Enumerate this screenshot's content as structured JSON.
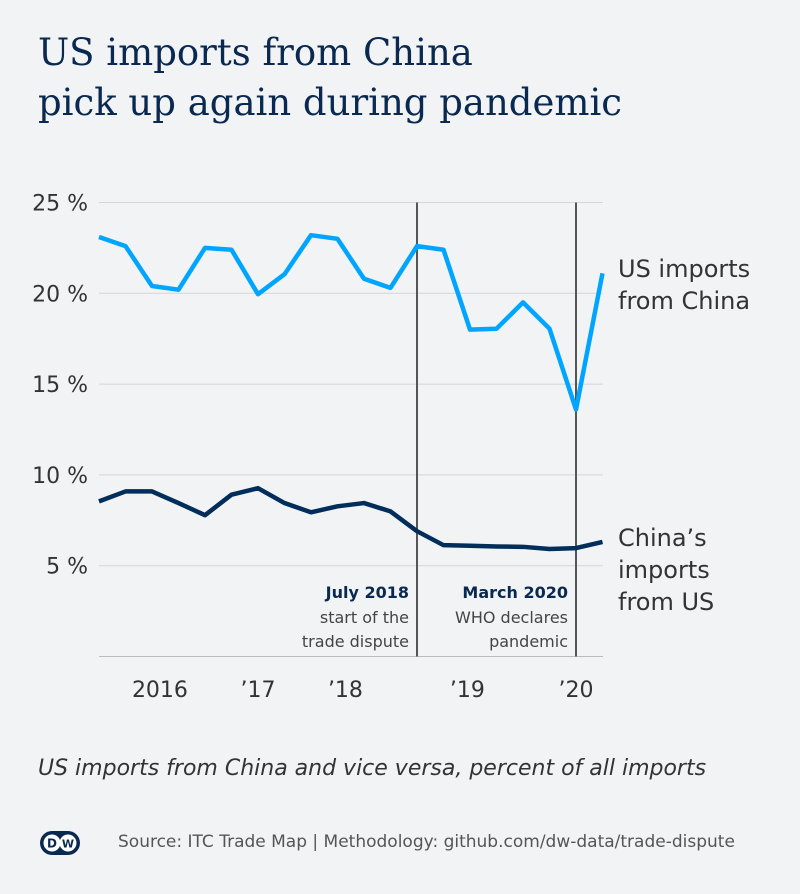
{
  "title_lines": [
    "US imports from China",
    "pick up again during pandemic"
  ],
  "subtitle": "US imports from China and vice versa, percent of all imports",
  "source": "Source: ITC Trade Map | Methodology: github.com/dw-data/trade-dispute",
  "logo": "DW",
  "chart_data": {
    "type": "line",
    "ylim": [
      0,
      25
    ],
    "yticks": [
      {
        "v": 25,
        "label": "25 %"
      },
      {
        "v": 20,
        "label": "20 %"
      },
      {
        "v": 15,
        "label": "15 %"
      },
      {
        "v": 10,
        "label": "10 %"
      },
      {
        "v": 5,
        "label": "5 %"
      }
    ],
    "xticks": [
      {
        "i": 2.3,
        "label": "2016"
      },
      {
        "i": 6,
        "label": "’17"
      },
      {
        "i": 9.3,
        "label": "’18"
      },
      {
        "i": 13.9,
        "label": "’19"
      },
      {
        "i": 18,
        "label": "’20"
      }
    ],
    "series": [
      {
        "name": "US imports from China",
        "label_lines": [
          "US imports",
          "from China"
        ],
        "color": "#00a5ff",
        "values": [
          23.1,
          22.6,
          20.4,
          20.2,
          22.5,
          22.4,
          19.95,
          21.05,
          23.2,
          23.0,
          20.8,
          20.3,
          22.6,
          22.4,
          18.0,
          18.05,
          19.5,
          18.05,
          13.6,
          21.1
        ]
      },
      {
        "name": "China's imports from US",
        "label_lines": [
          "China’s",
          "imports",
          "from US"
        ],
        "color": "#002d5a",
        "values": [
          8.54,
          9.09,
          9.09,
          8.45,
          7.78,
          8.91,
          9.27,
          8.45,
          7.94,
          8.27,
          8.45,
          7.99,
          6.9,
          6.13,
          6.1,
          6.06,
          6.04,
          5.92,
          5.97,
          6.31
        ]
      }
    ],
    "annotations": [
      {
        "i": 12,
        "title": "July 2018",
        "lines": [
          "start of the",
          "trade dispute"
        ]
      },
      {
        "i": 18,
        "title": "March 2020",
        "lines": [
          "WHO declares",
          "pandemic"
        ]
      }
    ]
  }
}
